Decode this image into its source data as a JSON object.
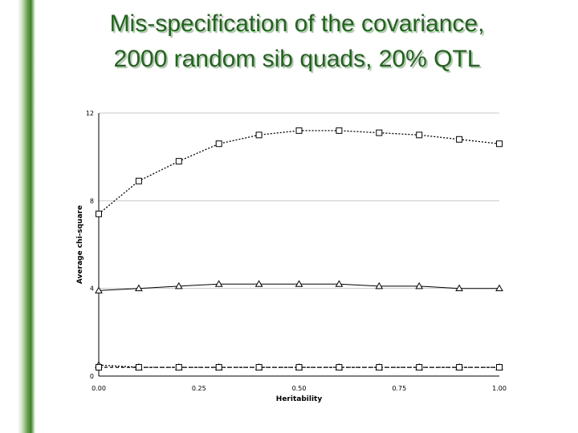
{
  "slide": {
    "title_line1": "Mis-specification of the covariance,",
    "title_line2": "2000 random sib quads, 20% QTL"
  },
  "chart_data": {
    "type": "line",
    "title": "",
    "xlabel": "Heritability",
    "ylabel": "Average chi-square",
    "xlim": [
      0,
      1
    ],
    "ylim": [
      0,
      12
    ],
    "xticks": [
      0,
      0.25,
      0.5,
      0.75,
      1
    ],
    "xtick_labels": [
      "0.00",
      "0.25",
      "0.50",
      "0.75",
      "1.00"
    ],
    "yticks": [
      0,
      4,
      8,
      12
    ],
    "ytick_labels": [
      "0",
      "4",
      "8",
      "12"
    ],
    "grid": "horizontal",
    "legend": "none",
    "x": [
      0,
      0.1,
      0.2,
      0.3,
      0.4,
      0.5,
      0.6,
      0.7,
      0.8,
      0.9,
      1.0
    ],
    "series": [
      {
        "marker": "square",
        "line": "dotted",
        "values": [
          7.4,
          8.9,
          9.8,
          10.6,
          11.0,
          11.2,
          11.2,
          11.1,
          11.0,
          10.8,
          10.6
        ]
      },
      {
        "marker": "triangle",
        "line": "solid",
        "values": [
          3.9,
          4.0,
          4.1,
          4.2,
          4.2,
          4.2,
          4.2,
          4.1,
          4.1,
          4.0,
          4.0
        ]
      },
      {
        "marker": "triangle",
        "line": "dotted",
        "values": [
          0.5,
          0.4,
          0.4,
          0.4,
          0.4,
          0.4,
          0.4,
          0.4,
          0.4,
          0.4,
          0.4
        ]
      },
      {
        "marker": "square",
        "line": "dashed",
        "values": [
          0.4,
          0.4,
          0.4,
          0.4,
          0.4,
          0.4,
          0.4,
          0.4,
          0.4,
          0.4,
          0.4
        ]
      }
    ]
  }
}
